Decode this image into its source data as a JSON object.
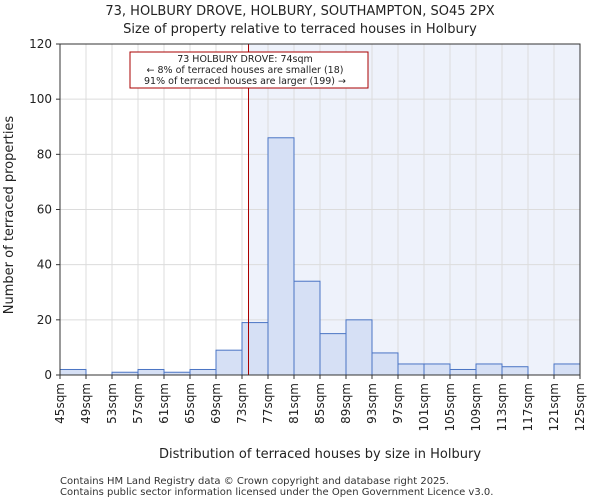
{
  "chart_data": {
    "type": "bar",
    "title": "73, HOLBURY DROVE, HOLBURY, SOUTHAMPTON, SO45 2PX",
    "subtitle": "Size of property relative to terraced houses in Holbury",
    "xlabel": "Distribution of terraced houses by size in Holbury",
    "ylabel": "Number of terraced properties",
    "ylim": [
      0,
      120
    ],
    "yticks": [
      0,
      20,
      40,
      60,
      80,
      100,
      120
    ],
    "bin_edges": [
      45,
      49,
      53,
      57,
      61,
      65,
      69,
      73,
      77,
      81,
      85,
      89,
      93,
      97,
      101,
      105,
      109,
      113,
      117,
      121,
      125
    ],
    "tick_labels": [
      "45sqm",
      "49sqm",
      "53sqm",
      "57sqm",
      "61sqm",
      "65sqm",
      "69sqm",
      "73sqm",
      "77sqm",
      "81sqm",
      "85sqm",
      "89sqm",
      "93sqm",
      "97sqm",
      "101sqm",
      "105sqm",
      "109sqm",
      "113sqm",
      "117sqm",
      "121sqm",
      "125sqm"
    ],
    "values": [
      2,
      0,
      1,
      2,
      1,
      2,
      9,
      19,
      86,
      34,
      15,
      20,
      8,
      4,
      4,
      2,
      4,
      3,
      0,
      4
    ],
    "property_size": 74,
    "annotation": {
      "line1": "73 HOLBURY DROVE: 74sqm",
      "line2": "← 8% of terraced houses are smaller (18)",
      "line3": "91% of terraced houses are larger (199) →"
    },
    "colors": {
      "bar_fill": "#d6e0f5",
      "bar_stroke": "#4a74c4",
      "highlight_bg": "#eef2fb",
      "marker_line": "#aa0000",
      "grid": "#dcdcdc"
    }
  },
  "footer": {
    "line1": "Contains HM Land Registry data © Crown copyright and database right 2025.",
    "line2": "Contains public sector information licensed under the Open Government Licence v3.0."
  }
}
